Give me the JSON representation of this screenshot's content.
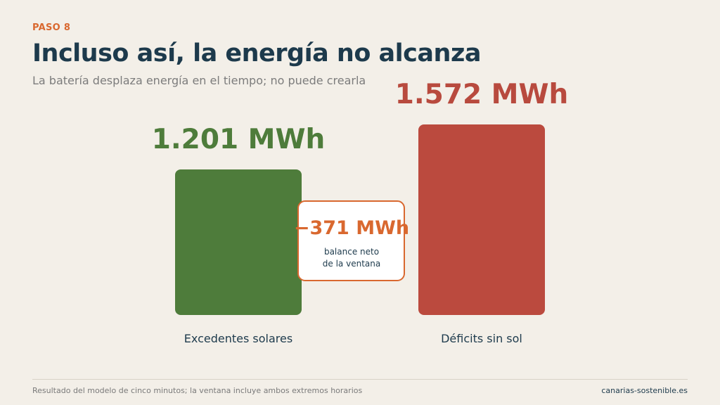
{
  "header": {
    "step": "PASO 8",
    "title": "Incluso así, la energía no alcanza",
    "subtitle": "La batería desplaza energía en el tiempo; no puede crearla"
  },
  "chart_data": {
    "type": "bar",
    "categories": [
      "Excedentes solares",
      "Déficits sin sol"
    ],
    "values": [
      1201,
      1572
    ],
    "unit": "MWh",
    "value_labels": [
      "1.201 MWh",
      "1.572 MWh"
    ],
    "bar_colors": [
      "#4e7c3b",
      "#bb4a3e"
    ],
    "label_colors": [
      "#4e7c3b",
      "#b84a3e"
    ],
    "annotation": {
      "value": -371,
      "text": "−371 MWh",
      "caption_line1": "balance neto",
      "caption_line2": "de la ventana",
      "color": "#d9682f"
    }
  },
  "footer": {
    "note": "Resultado del modelo de cinco minutos; la ventana incluye ambos extremos horarios",
    "site": "canarias-sostenible.es"
  }
}
